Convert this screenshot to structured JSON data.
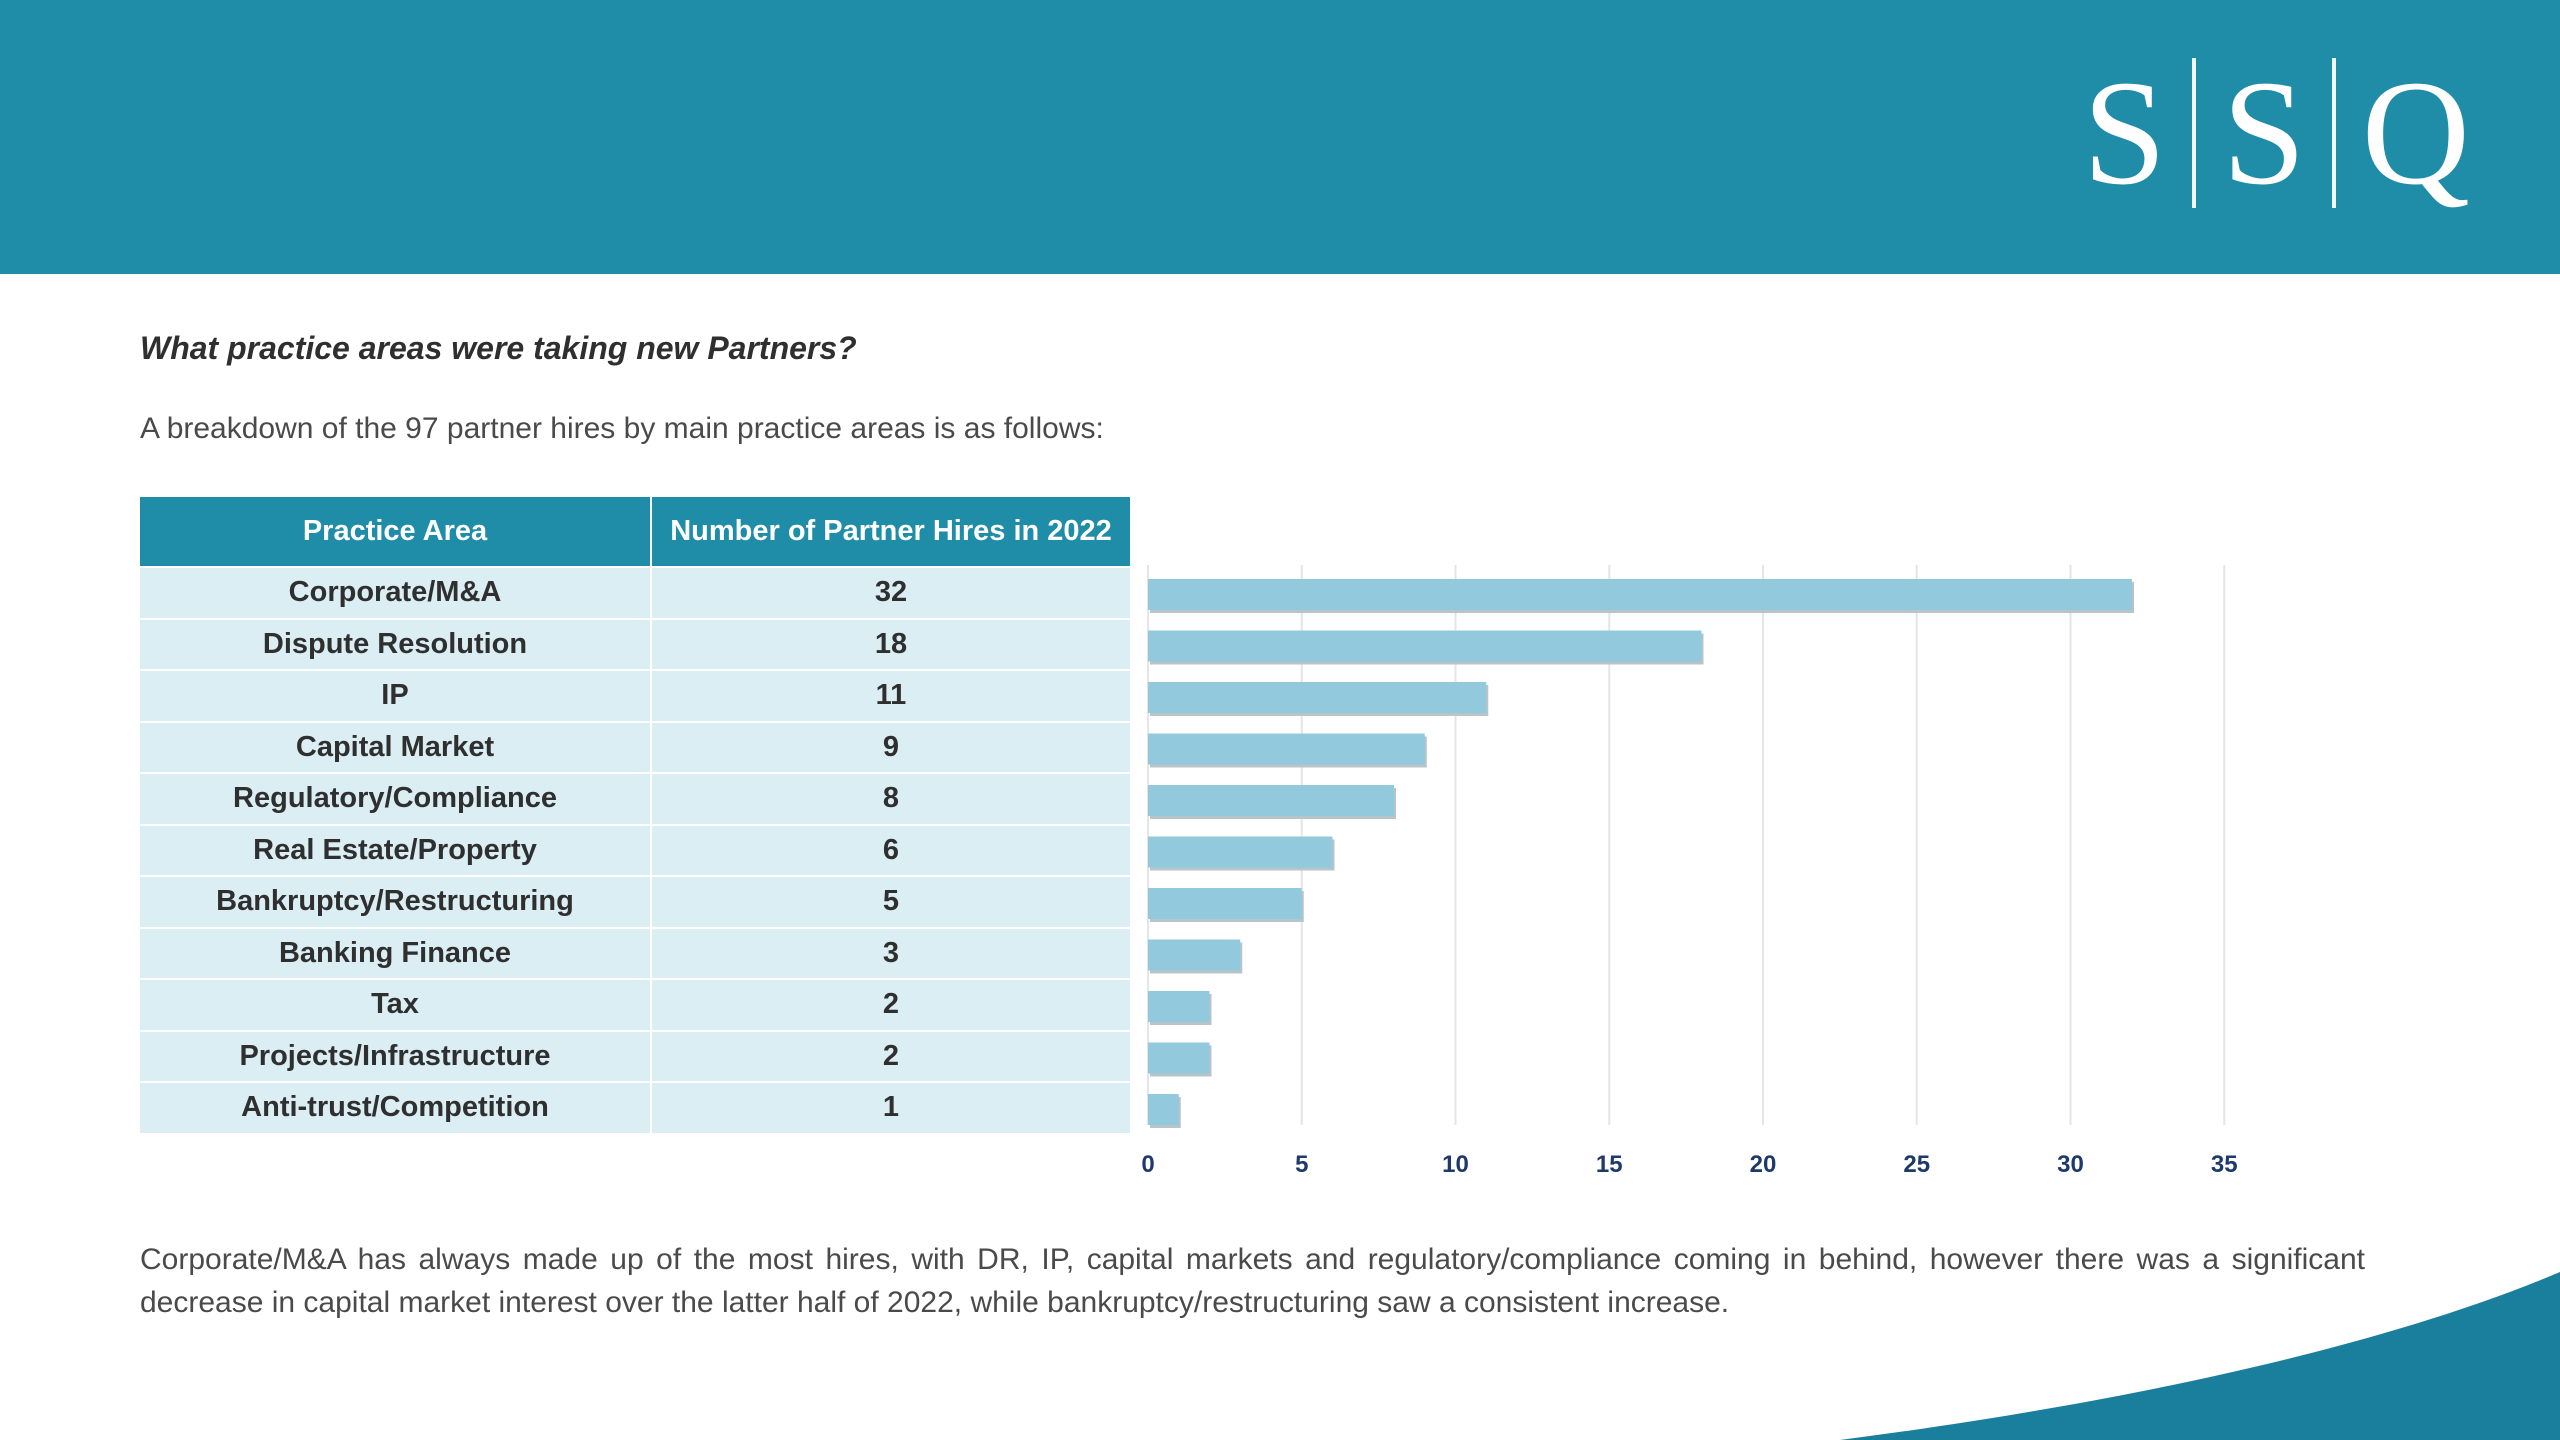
{
  "brand": {
    "logo_letters": [
      "S",
      "S",
      "Q"
    ]
  },
  "colors": {
    "header": "#1f8ca8",
    "bar": "#92c9dc",
    "table_row": "#daeef4",
    "axis_text": "#1e3a6b",
    "swoosh": "#1a7f9c"
  },
  "heading": "What practice areas were taking new Partners?",
  "intro": "A breakdown of the 97 partner hires by main practice areas is as follows:",
  "table": {
    "headers": [
      "Practice Area",
      "Number of Partner Hires in 2022"
    ],
    "rows": [
      [
        "Corporate/M&A",
        "32"
      ],
      [
        "Dispute Resolution",
        "18"
      ],
      [
        "IP",
        "11"
      ],
      [
        "Capital Market",
        "9"
      ],
      [
        "Regulatory/Compliance",
        "8"
      ],
      [
        "Real Estate/Property",
        "6"
      ],
      [
        "Bankruptcy/Restructuring",
        "5"
      ],
      [
        "Banking Finance",
        "3"
      ],
      [
        "Tax",
        "2"
      ],
      [
        "Projects/Infrastructure",
        "2"
      ],
      [
        "Anti-trust/Competition",
        "1"
      ]
    ]
  },
  "chart_data": {
    "type": "bar",
    "orientation": "horizontal",
    "categories": [
      "Corporate/M&A",
      "Dispute Resolution",
      "IP",
      "Capital Market",
      "Regulatory/Compliance",
      "Real Estate/Property",
      "Bankruptcy/Restructuring",
      "Banking Finance",
      "Tax",
      "Projects/Infrastructure",
      "Anti-trust/Competition"
    ],
    "values": [
      32,
      18,
      11,
      9,
      8,
      6,
      5,
      3,
      2,
      2,
      1
    ],
    "xlim": [
      0,
      35
    ],
    "xticks": [
      "0",
      "5",
      "10",
      "15",
      "20",
      "25",
      "30",
      "35"
    ],
    "grid": true,
    "legend": "none"
  },
  "summary": "Corporate/M&A has always made up of the most hires, with DR, IP, capital markets and regulatory/compliance coming in behind, however there was a significant decrease in capital market interest over the latter half of 2022, while bankruptcy/restructuring saw a consistent increase."
}
